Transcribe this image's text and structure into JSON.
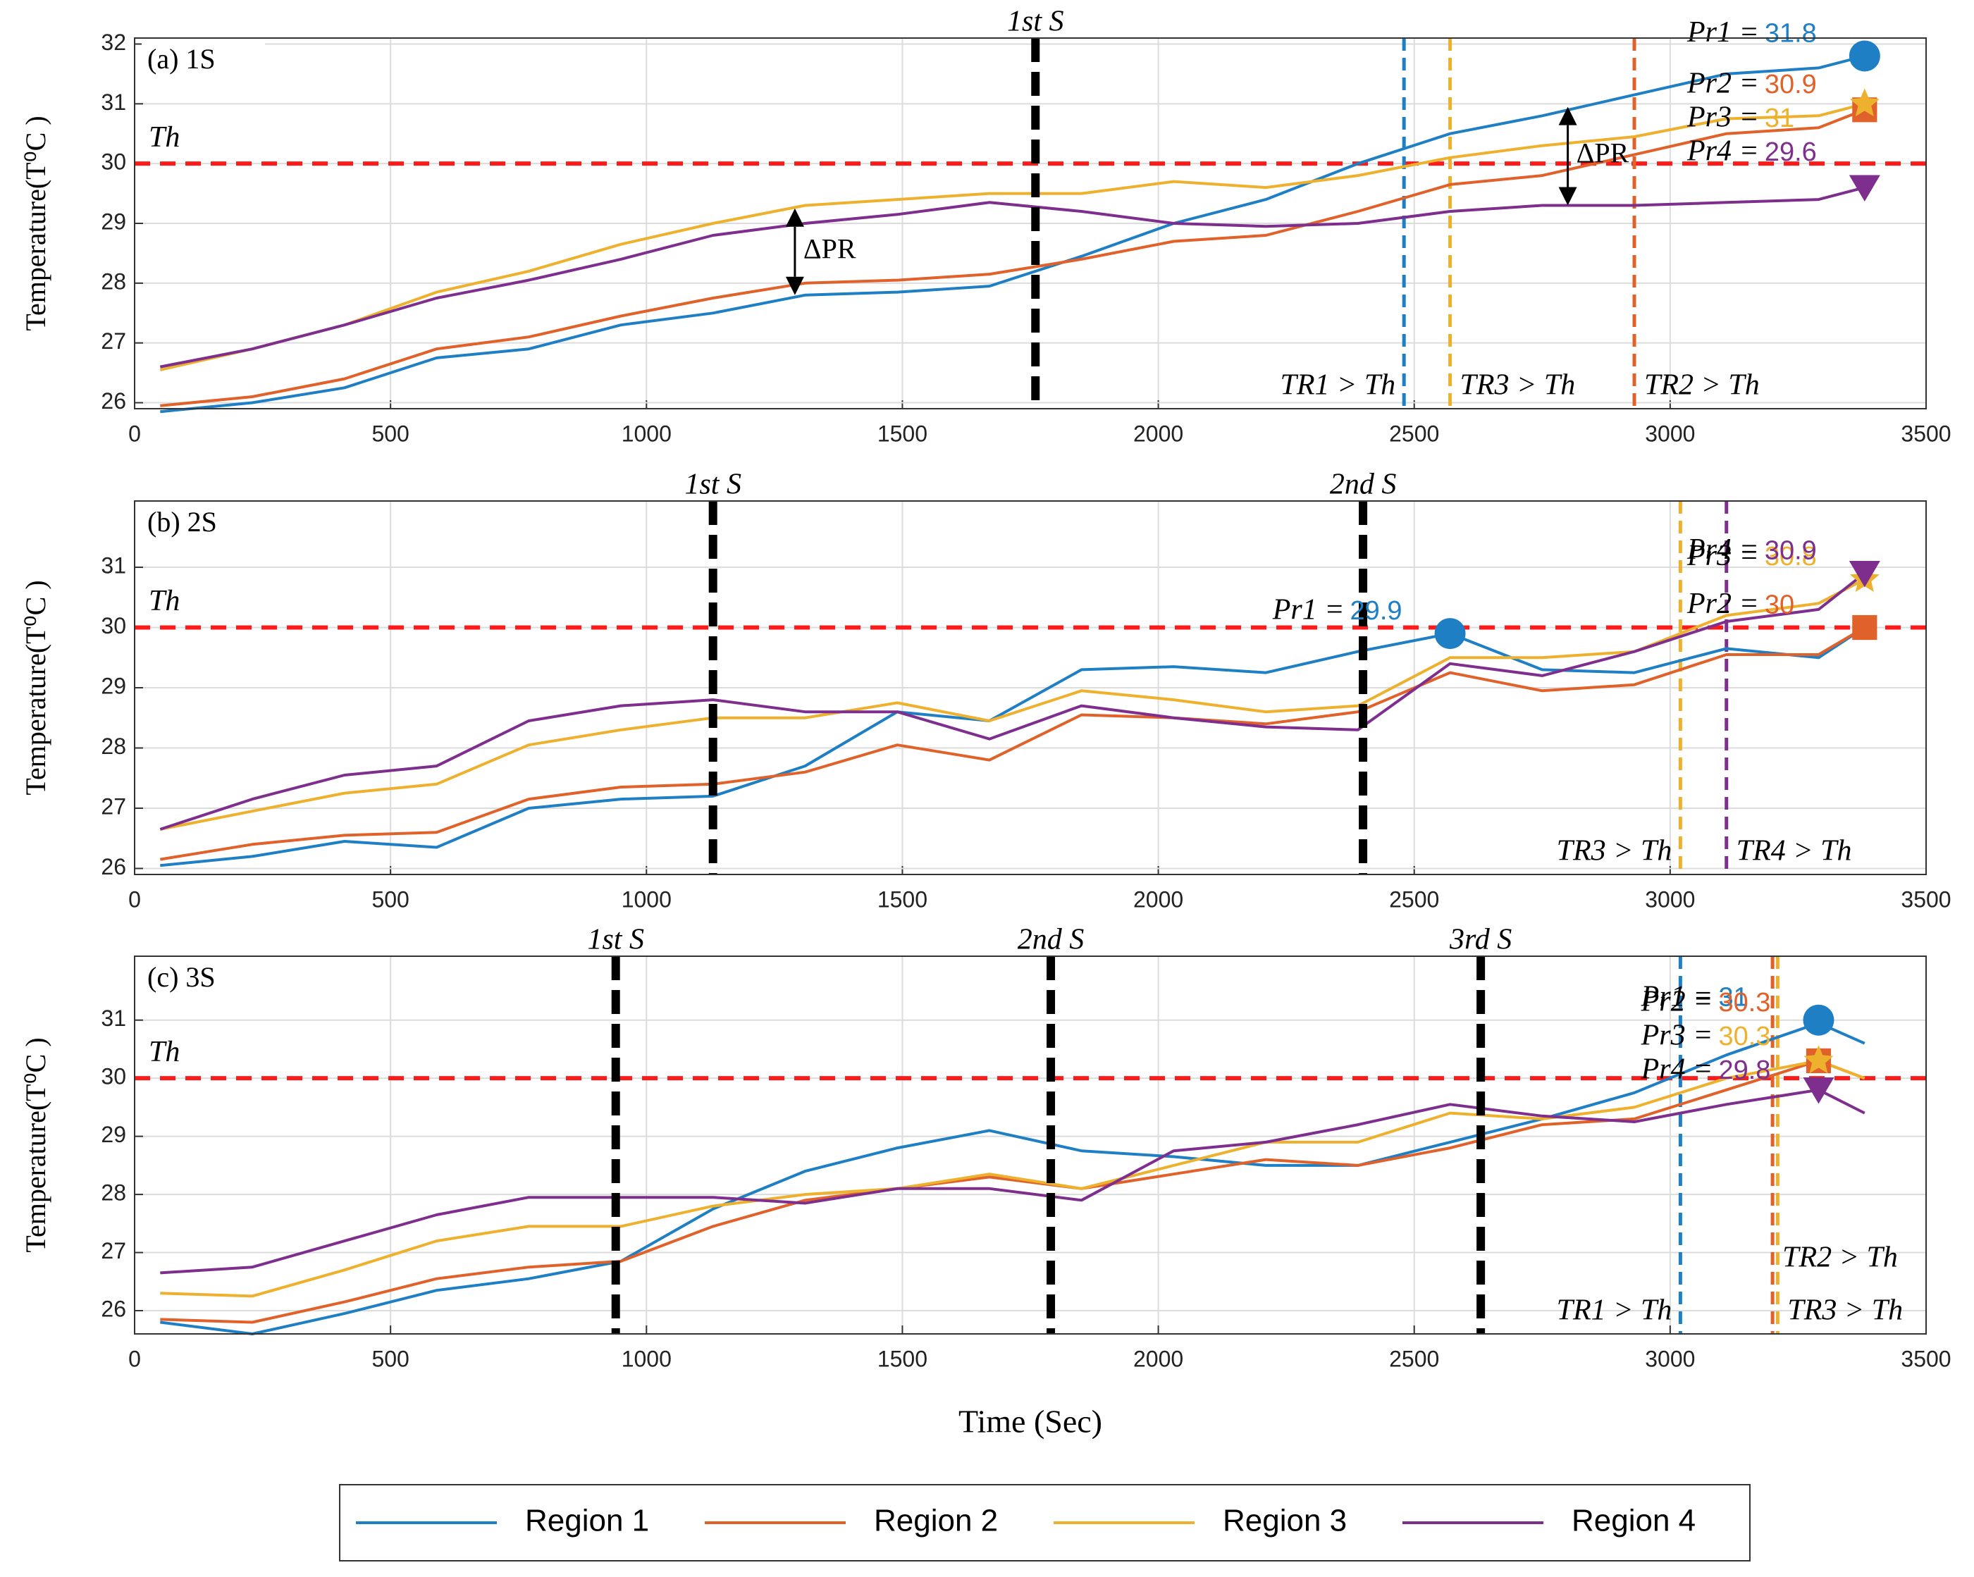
{
  "chart_data": [
    {
      "type": "line",
      "title": "(a) 1S",
      "ylabel": "Temperature(T⁰C )",
      "x": [
        50,
        230,
        410,
        590,
        770,
        950,
        1130,
        1310,
        1490,
        1670,
        1850,
        2030,
        2210,
        2390,
        2570,
        2750,
        2930,
        3110,
        3290,
        3380
      ],
      "series": [
        {
          "name": "Region 1",
          "color": "#1f7fc4",
          "values": [
            25.85,
            26.0,
            26.25,
            26.75,
            26.9,
            27.3,
            27.5,
            27.8,
            27.85,
            27.95,
            28.45,
            29.0,
            29.4,
            30.0,
            30.5,
            30.8,
            31.15,
            31.5,
            31.6,
            31.8
          ]
        },
        {
          "name": "Region 2",
          "color": "#e0622a",
          "values": [
            25.95,
            26.1,
            26.4,
            26.9,
            27.1,
            27.45,
            27.75,
            28.0,
            28.05,
            28.15,
            28.4,
            28.7,
            28.8,
            29.2,
            29.65,
            29.8,
            30.15,
            30.5,
            30.6,
            30.9
          ]
        },
        {
          "name": "Region 3",
          "color": "#eeb12e",
          "values": [
            26.55,
            26.9,
            27.3,
            27.85,
            28.2,
            28.65,
            29.0,
            29.3,
            29.4,
            29.5,
            29.5,
            29.7,
            29.6,
            29.8,
            30.1,
            30.3,
            30.45,
            30.75,
            30.8,
            31.0
          ]
        },
        {
          "name": "Region 4",
          "color": "#7e2f8e",
          "values": [
            26.6,
            26.9,
            27.3,
            27.75,
            28.05,
            28.4,
            28.8,
            29.0,
            29.15,
            29.35,
            29.2,
            29.0,
            28.95,
            29.0,
            29.2,
            29.3,
            29.3,
            29.35,
            29.4,
            29.6
          ]
        }
      ],
      "xlim": [
        0,
        3500
      ],
      "xticks": [
        0,
        500,
        1000,
        1500,
        2000,
        2500,
        3000,
        3500
      ],
      "ylim": [
        25.9,
        32.1
      ],
      "yticks": [
        26,
        27,
        28,
        29,
        30,
        31,
        32
      ],
      "grid": true,
      "threshold": {
        "value": 30,
        "label": "Th",
        "color": "#ff1a1a"
      },
      "switches": [
        {
          "x": 1760,
          "label": "1st S"
        }
      ],
      "crossings": [
        {
          "x": 2480,
          "color": "#1f7fc4",
          "label": "TR1 > Th"
        },
        {
          "x": 2570,
          "color": "#eeb12e",
          "label": "TR3 > Th"
        },
        {
          "x": 2930,
          "color": "#e0622a",
          "label": "TR2 > Th"
        }
      ],
      "peaks": [
        {
          "label": "Pr1 =",
          "x": 3380,
          "value": 31.8
        },
        {
          "label": "Pr2 =",
          "x": 3380,
          "value": 30.9
        },
        {
          "label": "Pr3 =",
          "x": 3380,
          "value": 31.0
        },
        {
          "label": "Pr4 =",
          "x": 3380,
          "value": 29.6
        }
      ],
      "annotations": [
        {
          "text": "ΔPR",
          "x": 1290,
          "y1": 29.25,
          "y2": 27.8
        },
        {
          "text": "ΔPR",
          "x": 2800,
          "y1": 30.95,
          "y2": 29.3
        }
      ]
    },
    {
      "type": "line",
      "title": "(b) 2S",
      "ylabel": "Temperature(T⁰C )",
      "x": [
        50,
        230,
        410,
        590,
        770,
        950,
        1130,
        1310,
        1490,
        1670,
        1850,
        2030,
        2210,
        2390,
        2570,
        2750,
        2930,
        3110,
        3290,
        3380
      ],
      "series": [
        {
          "color": "#1f7fc4",
          "values": [
            26.05,
            26.2,
            26.45,
            26.35,
            27.0,
            27.15,
            27.2,
            27.7,
            28.6,
            28.45,
            29.3,
            29.35,
            29.25,
            29.6,
            29.9,
            29.3,
            29.25,
            29.65,
            29.5,
            30.0
          ]
        },
        {
          "color": "#e0622a",
          "values": [
            26.15,
            26.4,
            26.55,
            26.6,
            27.15,
            27.35,
            27.4,
            27.6,
            28.05,
            27.8,
            28.55,
            28.5,
            28.4,
            28.6,
            29.25,
            28.95,
            29.05,
            29.55,
            29.55,
            30.0
          ]
        },
        {
          "color": "#eeb12e",
          "values": [
            26.65,
            26.95,
            27.25,
            27.4,
            28.05,
            28.3,
            28.5,
            28.5,
            28.75,
            28.45,
            28.95,
            28.8,
            28.6,
            28.7,
            29.5,
            29.5,
            29.6,
            30.2,
            30.4,
            30.8
          ]
        },
        {
          "color": "#7e2f8e",
          "values": [
            26.65,
            27.15,
            27.55,
            27.7,
            28.45,
            28.7,
            28.8,
            28.6,
            28.6,
            28.15,
            28.7,
            28.5,
            28.35,
            28.3,
            29.4,
            29.2,
            29.6,
            30.1,
            30.3,
            30.9
          ]
        }
      ],
      "xlim": [
        0,
        3500
      ],
      "xticks": [
        0,
        500,
        1000,
        1500,
        2000,
        2500,
        3000,
        3500
      ],
      "ylim": [
        25.9,
        32.1
      ],
      "yticks": [
        26,
        27,
        28,
        29,
        30,
        31
      ],
      "grid": true,
      "threshold": {
        "value": 30,
        "label": "Th",
        "color": "#ff1a1a"
      },
      "switches": [
        {
          "x": 1130,
          "label": "1st S"
        },
        {
          "x": 2400,
          "label": "2nd S"
        }
      ],
      "crossings": [
        {
          "x": 3020,
          "color": "#eeb12e",
          "label": "TR3 > Th"
        },
        {
          "x": 3110,
          "color": "#7e2f8e",
          "label": "TR4 > Th"
        }
      ],
      "peaks": [
        {
          "label": "Pr1 =",
          "x": 2570,
          "value": 29.9
        },
        {
          "label": "Pr2 =",
          "x": 3380,
          "value": 30.0
        },
        {
          "label": "Pr3 =",
          "x": 3380,
          "value": 30.8
        },
        {
          "label": "Pr4 =",
          "x": 3380,
          "value": 30.9
        }
      ]
    },
    {
      "type": "line",
      "title": "(c) 3S",
      "ylabel": "Temperature(T⁰C )",
      "xlabel": "Time (Sec)",
      "x": [
        50,
        230,
        410,
        590,
        770,
        950,
        1130,
        1310,
        1490,
        1670,
        1850,
        2030,
        2210,
        2390,
        2570,
        2750,
        2930,
        3110,
        3290,
        3380
      ],
      "series": [
        {
          "color": "#1f7fc4",
          "values": [
            25.8,
            25.6,
            25.95,
            26.35,
            26.55,
            26.85,
            27.75,
            28.4,
            28.8,
            29.1,
            28.75,
            28.65,
            28.5,
            28.5,
            28.9,
            29.3,
            29.75,
            30.4,
            30.95,
            30.6
          ]
        },
        {
          "color": "#e0622a",
          "values": [
            25.85,
            25.8,
            26.15,
            26.55,
            26.75,
            26.85,
            27.45,
            27.9,
            28.1,
            28.3,
            28.1,
            28.35,
            28.6,
            28.5,
            28.8,
            29.2,
            29.3,
            29.8,
            30.3,
            30.0
          ]
        },
        {
          "color": "#eeb12e",
          "values": [
            26.3,
            26.25,
            26.7,
            27.2,
            27.45,
            27.45,
            27.8,
            28.0,
            28.1,
            28.35,
            28.1,
            28.5,
            28.9,
            28.9,
            29.4,
            29.3,
            29.5,
            30.0,
            30.3,
            30.0
          ]
        },
        {
          "color": "#7e2f8e",
          "values": [
            26.65,
            26.75,
            27.2,
            27.65,
            27.95,
            27.95,
            27.95,
            27.85,
            28.1,
            28.1,
            27.9,
            28.75,
            28.9,
            29.2,
            29.55,
            29.35,
            29.25,
            29.55,
            29.8,
            29.4
          ]
        }
      ],
      "xlim": [
        0,
        3500
      ],
      "xticks": [
        0,
        500,
        1000,
        1500,
        2000,
        2500,
        3000,
        3500
      ],
      "ylim": [
        25.6,
        32.1
      ],
      "yticks": [
        26,
        27,
        28,
        29,
        30,
        31
      ],
      "grid": true,
      "threshold": {
        "value": 30,
        "label": "Th",
        "color": "#ff1a1a"
      },
      "switches": [
        {
          "x": 940,
          "label": "1st S"
        },
        {
          "x": 1790,
          "label": "2nd S"
        },
        {
          "x": 2630,
          "label": "3rd S"
        }
      ],
      "crossings": [
        {
          "x": 3020,
          "color": "#1f7fc4",
          "label": "TR1 > Th"
        },
        {
          "x": 3200,
          "color": "#e0622a",
          "label": "TR2 > Th"
        },
        {
          "x": 3210,
          "color": "#eeb12e",
          "label": "TR3 > Th"
        }
      ],
      "peaks": [
        {
          "label": "Pr1 =",
          "x": 3290,
          "value": 31.0
        },
        {
          "label": "Pr2 =",
          "x": 3290,
          "value": 30.3
        },
        {
          "label": "Pr3 =",
          "x": 3290,
          "value": 30.3
        },
        {
          "label": "Pr4 =",
          "x": 3290,
          "value": 29.8
        }
      ]
    }
  ]
}
